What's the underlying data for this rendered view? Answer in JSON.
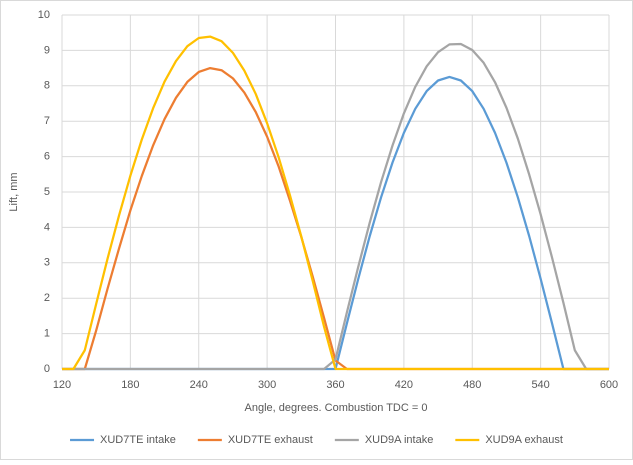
{
  "chart_data": {
    "type": "line",
    "x_label": "Angle, degrees. Combustion TDC = 0",
    "y_label": "Lift, mm",
    "x": [
      120,
      130,
      140,
      150,
      160,
      170,
      180,
      190,
      200,
      210,
      220,
      230,
      240,
      250,
      260,
      270,
      280,
      290,
      300,
      310,
      320,
      330,
      340,
      350,
      360,
      370,
      380,
      390,
      400,
      410,
      420,
      430,
      440,
      450,
      460,
      470,
      480,
      490,
      500,
      510,
      520,
      530,
      540,
      550,
      560,
      570,
      580,
      590,
      600
    ],
    "xlim": [
      120,
      600
    ],
    "xticks": [
      120,
      180,
      240,
      300,
      360,
      420,
      480,
      540,
      600
    ],
    "ylim": [
      0,
      10
    ],
    "yticks": [
      0,
      1,
      2,
      3,
      4,
      5,
      6,
      7,
      8,
      9,
      10
    ],
    "grid": true,
    "legend": "bottom",
    "series": [
      {
        "name": "XUD7TE intake",
        "color": "#5b9bd5",
        "values": [
          0,
          0,
          0,
          0,
          0,
          0,
          0,
          0,
          0,
          0,
          0,
          0,
          0,
          0,
          0,
          0,
          0,
          0,
          0,
          0,
          0,
          0,
          0,
          0,
          0,
          1.29,
          2.55,
          3.75,
          4.85,
          5.83,
          6.67,
          7.35,
          7.85,
          8.15,
          8.25,
          8.15,
          7.85,
          7.35,
          6.67,
          5.83,
          4.85,
          3.75,
          2.55,
          1.29,
          0,
          0,
          0,
          0,
          0
        ]
      },
      {
        "name": "XUD7TE exhaust",
        "color": "#ed7d31",
        "values": [
          0,
          0,
          0,
          1.09,
          2.27,
          3.4,
          4.48,
          5.45,
          6.32,
          7.06,
          7.66,
          8.11,
          8.39,
          8.5,
          8.44,
          8.21,
          7.81,
          7.26,
          6.56,
          5.73,
          4.76,
          3.73,
          2.61,
          1.44,
          0.24,
          0,
          0,
          0,
          0,
          0,
          0,
          0,
          0,
          0,
          0,
          0,
          0,
          0,
          0,
          0,
          0,
          0,
          0,
          0,
          0,
          0,
          0,
          0,
          0
        ]
      },
      {
        "name": "XUD9A intake",
        "color": "#a5a5a5",
        "values": [
          0,
          0,
          0,
          0,
          0,
          0,
          0,
          0,
          0,
          0,
          0,
          0,
          0,
          0,
          0,
          0,
          0,
          0,
          0,
          0,
          0,
          0,
          0,
          0,
          0.27,
          1.6,
          2.89,
          4.13,
          5.28,
          6.31,
          7.22,
          7.97,
          8.55,
          8.95,
          9.17,
          9.18,
          9.01,
          8.65,
          8.1,
          7.38,
          6.51,
          5.49,
          4.37,
          3.15,
          1.87,
          0.53,
          0,
          0,
          0
        ]
      },
      {
        "name": "XUD9A exhaust",
        "color": "#ffc000",
        "values": [
          0,
          0,
          0.53,
          1.84,
          3.12,
          4.33,
          5.46,
          6.48,
          7.37,
          8.12,
          8.7,
          9.12,
          9.35,
          9.39,
          9.26,
          8.93,
          8.43,
          7.77,
          6.94,
          5.99,
          4.91,
          3.74,
          2.49,
          1.19,
          0,
          0,
          0,
          0,
          0,
          0,
          0,
          0,
          0,
          0,
          0,
          0,
          0,
          0,
          0,
          0,
          0,
          0,
          0,
          0,
          0,
          0,
          0,
          0,
          0
        ]
      }
    ]
  }
}
